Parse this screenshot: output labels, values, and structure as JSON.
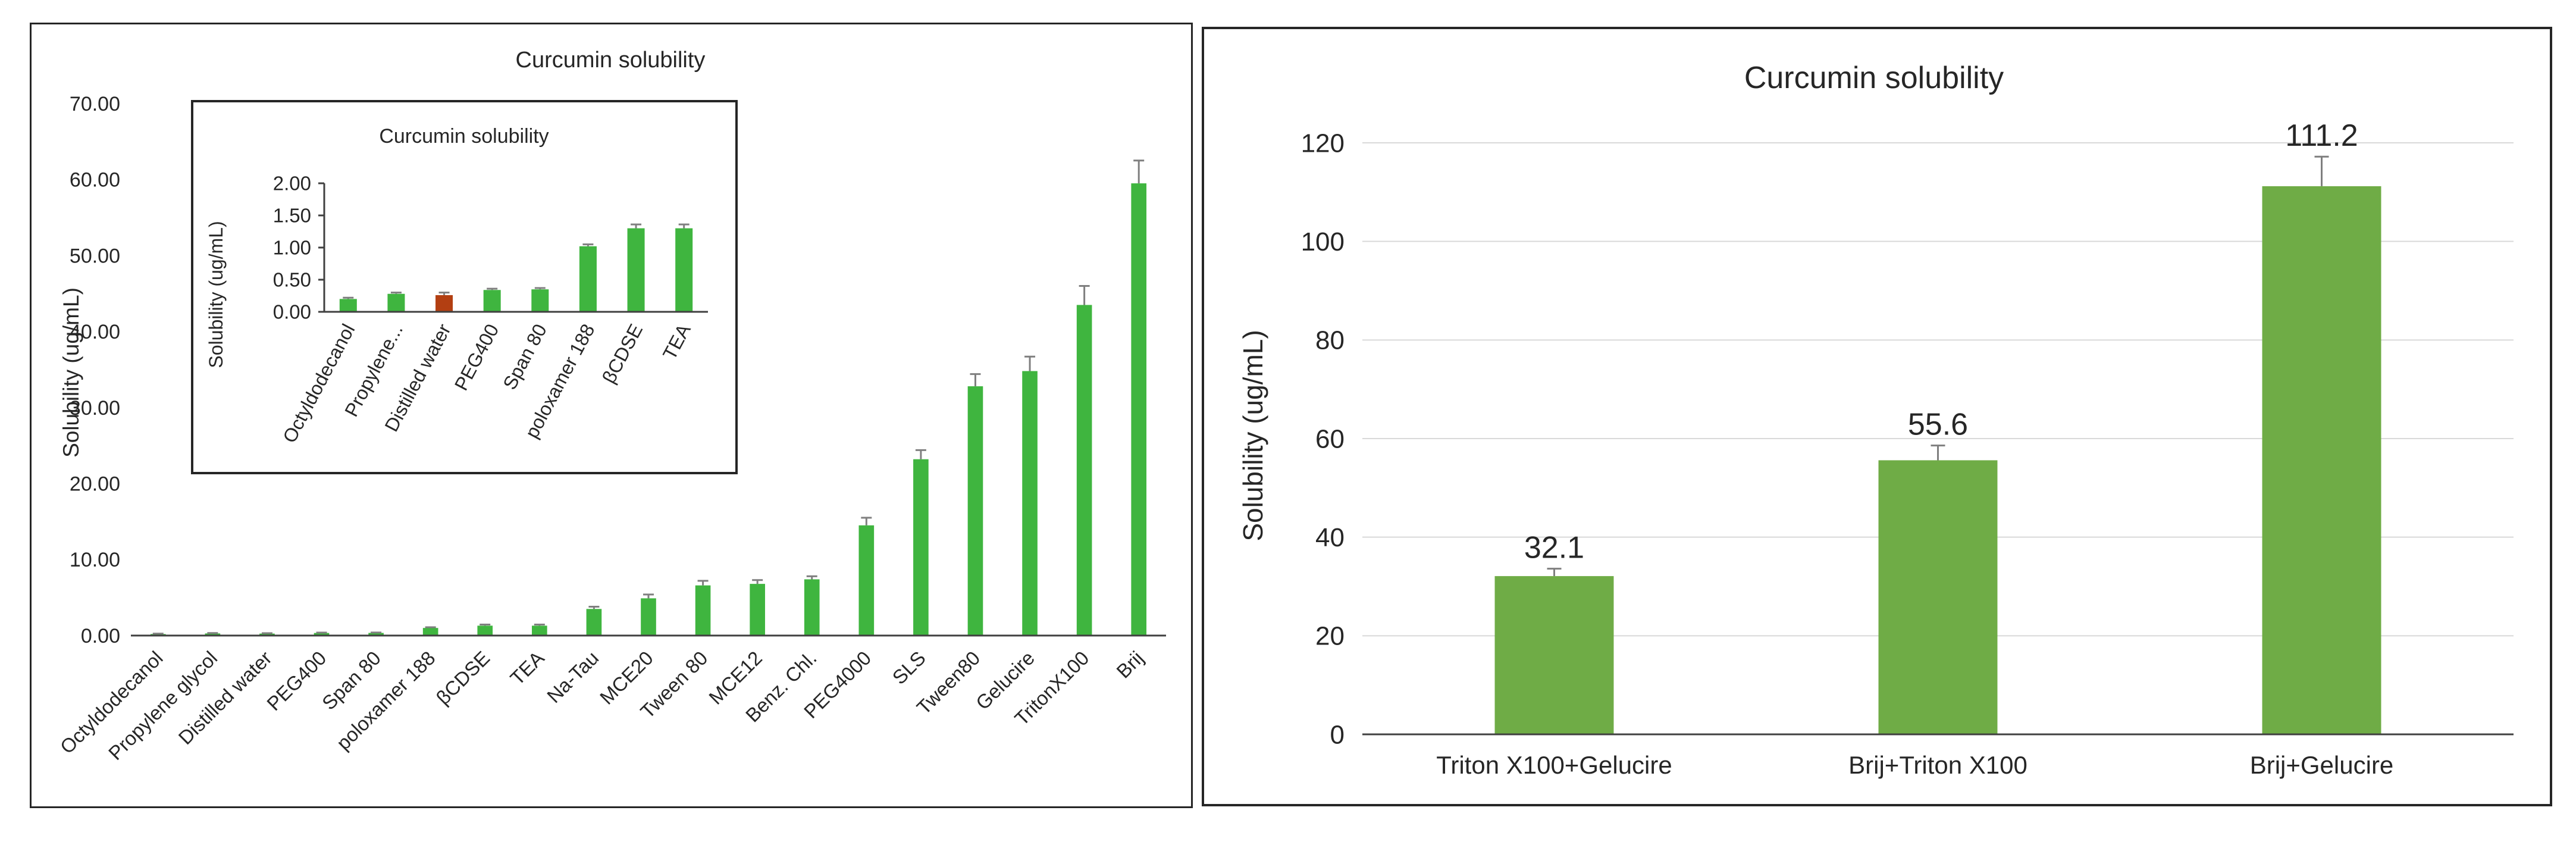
{
  "colors": {
    "bar": "#3fb53f",
    "highlight": "#b33f12",
    "bar_right": "#6fac46",
    "axis": "#404040",
    "grid": "#d9d9d9",
    "text": "#262626"
  },
  "chart_data": [
    {
      "type": "bar",
      "title": "Curcumin solubility",
      "xlabel": "",
      "ylabel": "Solubility (ug/mL)",
      "ylim": [
        0,
        70
      ],
      "ytick_values": [
        0,
        10,
        20,
        30,
        40,
        50,
        60,
        70
      ],
      "ytick_labels": [
        "0.00",
        "10.00",
        "20.00",
        "30.00",
        "40.00",
        "50.00",
        "60.00",
        "70.00"
      ],
      "categories": [
        "Octyldodecanol",
        "Propylene glycol",
        "Distilled water",
        "PEG400",
        "Span 80",
        "poloxamer 188",
        "βCDSE",
        "TEA",
        "Na-Tau",
        "MCE20",
        "Tween 80",
        "MCE12",
        "Benz. Chl.",
        "PEG4000",
        "SLS",
        "Tween80",
        "Gelucire",
        "TritonX100",
        "Brij"
      ],
      "values": [
        0.2,
        0.28,
        0.26,
        0.34,
        0.35,
        1.0,
        1.3,
        1.3,
        3.5,
        4.9,
        6.6,
        6.8,
        7.4,
        14.5,
        23.2,
        32.8,
        34.8,
        43.5,
        59.5
      ],
      "errors": [
        0.05,
        0.05,
        0.05,
        0.05,
        0.05,
        0.1,
        0.15,
        0.15,
        0.3,
        0.5,
        0.6,
        0.5,
        0.4,
        1.0,
        1.2,
        1.6,
        1.9,
        2.5,
        3.0
      ],
      "legend": "none"
    },
    {
      "type": "bar",
      "title": "Curcumin solubility",
      "xlabel": "",
      "ylabel": "Solubility (ug/mL)",
      "ylim": [
        0,
        2
      ],
      "ytick_values": [
        0,
        0.5,
        1,
        1.5,
        2
      ],
      "ytick_labels": [
        "0.00",
        "0.50",
        "1.00",
        "1.50",
        "2.00"
      ],
      "categories": [
        "Octyldodecanol",
        "Propylene...",
        "Distilled water",
        "PEG400",
        "Span 80",
        "poloxamer 188",
        "βCDSE",
        "TEA"
      ],
      "values": [
        0.2,
        0.28,
        0.26,
        0.34,
        0.35,
        1.02,
        1.3,
        1.3
      ],
      "errors": [
        0.02,
        0.02,
        0.04,
        0.02,
        0.02,
        0.03,
        0.06,
        0.06
      ],
      "highlight_index": 2,
      "legend": "none"
    },
    {
      "type": "bar",
      "title": "Curcumin solubility",
      "xlabel": "",
      "ylabel": "Solubility (ug/mL)",
      "ylim": [
        0,
        120
      ],
      "ytick_values": [
        0,
        20,
        40,
        60,
        80,
        100,
        120
      ],
      "ytick_labels": [
        "0",
        "20",
        "40",
        "60",
        "80",
        "100",
        "120"
      ],
      "categories": [
        "Triton X100+Gelucire",
        "Brij+Triton X100",
        "Brij+Gelucire"
      ],
      "values": [
        32.1,
        55.6,
        111.2
      ],
      "data_labels": [
        "32.1",
        "55.6",
        "111.2"
      ],
      "errors": [
        1.5,
        3.0,
        6.0
      ],
      "grid": true,
      "legend": "none"
    }
  ]
}
